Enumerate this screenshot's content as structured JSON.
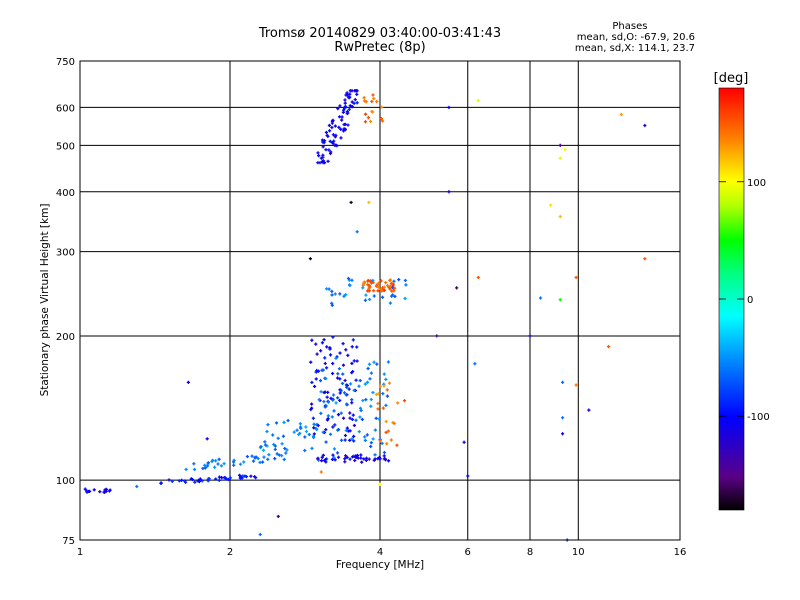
{
  "chart_data": {
    "type": "scatter",
    "title": "Tromsø 20140829 03:40:00-03:41:43",
    "subtitle": "RwPretec (8p)",
    "xlabel": "Frequency [MHz]",
    "ylabel": "Stationary phase Virtual Height [km]",
    "xscale": "log2",
    "yscale": "log",
    "xlim": [
      1,
      16
    ],
    "ylim": [
      75,
      750
    ],
    "xticks": [
      {
        "v": 1,
        "label": "1"
      },
      {
        "v": 2,
        "label": "2"
      },
      {
        "v": 4,
        "label": "4"
      },
      {
        "v": 6,
        "label": "6"
      },
      {
        "v": 8,
        "label": "8"
      },
      {
        "v": 10,
        "label": "10"
      },
      {
        "v": 16,
        "label": "16"
      }
    ],
    "yticks": [
      {
        "v": 75,
        "label": "75"
      },
      {
        "v": 100,
        "label": "100"
      },
      {
        "v": 200,
        "label": "200"
      },
      {
        "v": 300,
        "label": "300"
      },
      {
        "v": 400,
        "label": "400"
      },
      {
        "v": 500,
        "label": "500"
      },
      {
        "v": 600,
        "label": "600"
      },
      {
        "v": 750,
        "label": "750"
      }
    ],
    "grid": true,
    "legend": {
      "heading": "Phases",
      "line1": "mean, sd,O: -67.9, 20.6",
      "line2": "mean, sd,X: 114.1, 23.7"
    },
    "colorbar": {
      "label": "[deg]",
      "range": [
        -180,
        180
      ],
      "ticks": [
        {
          "v": 100,
          "label": "100"
        },
        {
          "v": 0,
          "label": "0"
        },
        {
          "v": -100,
          "label": "-100"
        }
      ]
    },
    "clusters": [
      {
        "name": "low trace",
        "xr": [
          1.0,
          1.15
        ],
        "yr": [
          94,
          96
        ],
        "phase": -110,
        "n": 14
      },
      {
        "name": "ramp lower",
        "xr": [
          1.45,
          2.3
        ],
        "yr": [
          98,
          103
        ],
        "phase": -95,
        "n": 40
      },
      {
        "name": "ramp upper",
        "xr": [
          1.6,
          2.6
        ],
        "yr": [
          104,
          115
        ],
        "phase": -60,
        "n": 40
      },
      {
        "name": "E cusp cyan",
        "xr": [
          2.3,
          3.0
        ],
        "yr": [
          115,
          135
        ],
        "phase": -55,
        "n": 40
      },
      {
        "name": "F1 blue",
        "xr": [
          2.9,
          3.6
        ],
        "yr": [
          120,
          200
        ],
        "phase": -105,
        "n": 90
      },
      {
        "name": "F1 cyan",
        "xr": [
          3.0,
          4.2
        ],
        "yr": [
          110,
          180
        ],
        "phase": -60,
        "n": 90
      },
      {
        "name": "F1 base",
        "xr": [
          3.0,
          4.2
        ],
        "yr": [
          109,
          113
        ],
        "phase": -110,
        "n": 40
      },
      {
        "name": "F2 cyan",
        "xr": [
          3.1,
          4.6
        ],
        "yr": [
          230,
          265
        ],
        "phase": -60,
        "n": 35
      },
      {
        "name": "F2 X red",
        "xr": [
          3.7,
          4.3
        ],
        "yr": [
          248,
          262
        ],
        "phase": 150,
        "n": 45
      },
      {
        "name": "X mode orange",
        "xr": [
          3.9,
          4.5
        ],
        "yr": [
          115,
          160
        ],
        "phase": 140,
        "n": 20
      },
      {
        "name": "high echo blue",
        "xr": [
          3.0,
          3.6
        ],
        "yr": [
          460,
          650
        ],
        "phase": -105,
        "n": 90
      },
      {
        "name": "high echo orange",
        "xr": [
          3.7,
          4.1
        ],
        "yr": [
          560,
          640
        ],
        "phase": 145,
        "n": 16
      }
    ],
    "points": [
      {
        "x": 9.2,
        "y": 500,
        "phase": -140
      },
      {
        "x": 9.4,
        "y": 490,
        "phase": 100
      },
      {
        "x": 9.2,
        "y": 470,
        "phase": 90
      },
      {
        "x": 12.2,
        "y": 580,
        "phase": 130
      },
      {
        "x": 13.6,
        "y": 550,
        "phase": -120
      },
      {
        "x": 5.5,
        "y": 600,
        "phase": -100
      },
      {
        "x": 6.3,
        "y": 620,
        "phase": 90
      },
      {
        "x": 3.5,
        "y": 380,
        "phase": -170
      },
      {
        "x": 3.8,
        "y": 380,
        "phase": 120
      },
      {
        "x": 3.6,
        "y": 330,
        "phase": -60
      },
      {
        "x": 5.5,
        "y": 400,
        "phase": -110
      },
      {
        "x": 8.8,
        "y": 375,
        "phase": 110
      },
      {
        "x": 9.2,
        "y": 355,
        "phase": 120
      },
      {
        "x": 6.3,
        "y": 265,
        "phase": 150
      },
      {
        "x": 9.9,
        "y": 265,
        "phase": 150
      },
      {
        "x": 8.4,
        "y": 240,
        "phase": -60
      },
      {
        "x": 9.2,
        "y": 238,
        "phase": 50
      },
      {
        "x": 13.6,
        "y": 290,
        "phase": 150
      },
      {
        "x": 5.7,
        "y": 252,
        "phase": -160
      },
      {
        "x": 5.2,
        "y": 200,
        "phase": -140
      },
      {
        "x": 8.0,
        "y": 200,
        "phase": -120
      },
      {
        "x": 11.5,
        "y": 190,
        "phase": 150
      },
      {
        "x": 6.2,
        "y": 175,
        "phase": -60
      },
      {
        "x": 9.3,
        "y": 160,
        "phase": -60
      },
      {
        "x": 9.9,
        "y": 158,
        "phase": 140
      },
      {
        "x": 10.5,
        "y": 140,
        "phase": -110
      },
      {
        "x": 9.3,
        "y": 135,
        "phase": -60
      },
      {
        "x": 9.3,
        "y": 125,
        "phase": -120
      },
      {
        "x": 5.9,
        "y": 120,
        "phase": -110
      },
      {
        "x": 6.0,
        "y": 102,
        "phase": -100
      },
      {
        "x": 4.0,
        "y": 98,
        "phase": 100
      },
      {
        "x": 2.5,
        "y": 84,
        "phase": -140
      },
      {
        "x": 2.3,
        "y": 77,
        "phase": -60
      },
      {
        "x": 9.5,
        "y": 75,
        "phase": -80
      },
      {
        "x": 1.65,
        "y": 160,
        "phase": -110
      },
      {
        "x": 1.8,
        "y": 122,
        "phase": -110
      },
      {
        "x": 2.9,
        "y": 290,
        "phase": -170
      },
      {
        "x": 3.05,
        "y": 104,
        "phase": 140
      },
      {
        "x": 1.3,
        "y": 97,
        "phase": -60
      }
    ]
  }
}
